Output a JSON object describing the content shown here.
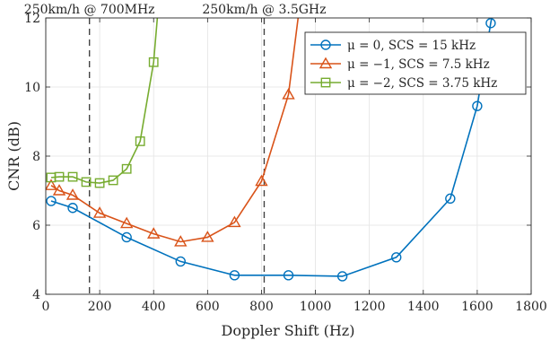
{
  "chart_data": {
    "type": "line",
    "title": "",
    "xlabel": "Doppler Shift (Hz)",
    "ylabel": "CNR (dB)",
    "xlim": [
      0,
      1800
    ],
    "ylim": [
      4,
      12
    ],
    "xticks": [
      0,
      200,
      400,
      600,
      800,
      1000,
      1200,
      1400,
      1600,
      1800
    ],
    "yticks": [
      4,
      6,
      8,
      10,
      12
    ],
    "grid": true,
    "legend_position": "top-right",
    "series": [
      {
        "name": "μ = 0, SCS = 15 kHz",
        "color": "#0072BD",
        "marker": "circle",
        "x": [
          20,
          100,
          300,
          500,
          700,
          900,
          1100,
          1300,
          1500,
          1600,
          1650
        ],
        "y": [
          6.7,
          6.5,
          5.65,
          4.95,
          4.55,
          4.55,
          4.52,
          5.07,
          6.77,
          9.45,
          11.85
        ],
        "extend_to": [
          1690,
          13.5
        ]
      },
      {
        "name": "μ = −1, SCS = 7.5 kHz",
        "color": "#D95319",
        "marker": "triangle",
        "x": [
          20,
          50,
          100,
          200,
          300,
          400,
          500,
          600,
          700,
          800,
          900
        ],
        "y": [
          7.15,
          7.0,
          6.87,
          6.35,
          6.05,
          5.75,
          5.52,
          5.65,
          6.08,
          7.27,
          9.78
        ],
        "extend_to": [
          960,
          13.5
        ]
      },
      {
        "name": "μ = −2, SCS = 3.75 kHz",
        "color": "#77AC30",
        "marker": "square",
        "x": [
          20,
          50,
          100,
          150,
          200,
          250,
          300,
          350,
          400
        ],
        "y": [
          7.38,
          7.4,
          7.4,
          7.25,
          7.22,
          7.3,
          7.63,
          8.43,
          10.72
        ],
        "extend_to": [
          430,
          13.5
        ]
      }
    ],
    "vlines": [
      {
        "x": 162,
        "label": "250km/h @ 700MHz"
      },
      {
        "x": 810,
        "label": "250km/h @ 3.5GHz"
      }
    ]
  }
}
